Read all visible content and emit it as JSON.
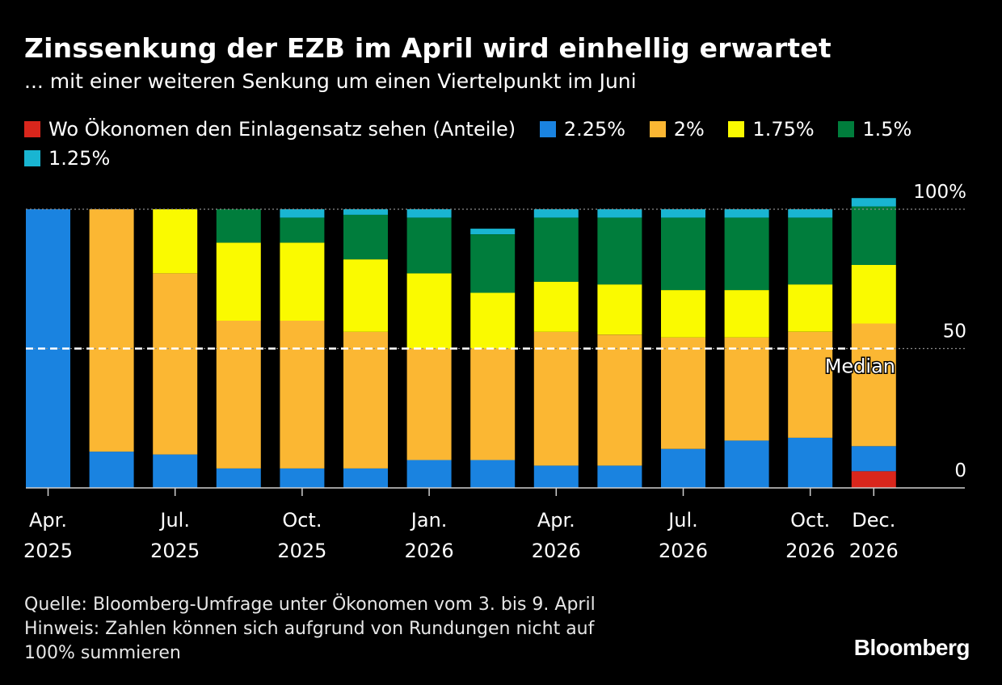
{
  "title": "Zinssenkung der EZB im April wird einhellig erwartet",
  "subtitle": "... mit einer weiteren Senkung um einen Viertelpunkt im Juni",
  "legend": [
    {
      "label": "Wo Ökonomen den Einlagensatz sehen (Anteile)",
      "color": "#d9261c"
    },
    {
      "label": "2.25%",
      "color": "#1a83e0"
    },
    {
      "label": "2%",
      "color": "#fbb733"
    },
    {
      "label": "1.75%",
      "color": "#fafa00"
    },
    {
      "label": "1.5%",
      "color": "#007d3c"
    },
    {
      "label": "1.25%",
      "color": "#19b5d2"
    }
  ],
  "chart_data": {
    "type": "bar",
    "stacked": true,
    "ylim": [
      0,
      100
    ],
    "yticks": [
      "0",
      "50",
      "100%"
    ],
    "xtick_labels": [
      {
        "index": 0,
        "line1": "Apr.",
        "line2": "2025"
      },
      {
        "index": 2,
        "line1": "Jul.",
        "line2": "2025"
      },
      {
        "index": 4,
        "line1": "Oct.",
        "line2": "2025"
      },
      {
        "index": 6,
        "line1": "Jan.",
        "line2": "2026"
      },
      {
        "index": 8,
        "line1": "Apr.",
        "line2": "2026"
      },
      {
        "index": 10,
        "line1": "Jul.",
        "line2": "2026"
      },
      {
        "index": 12,
        "line1": "Oct.",
        "line2": "2026"
      },
      {
        "index": 13,
        "line1": "Dec.",
        "line2": "2026"
      }
    ],
    "series": [
      {
        "name": "Wo Ökonomen den Einlagensatz sehen (Anteile)",
        "color": "#d9261c",
        "values": [
          0,
          0,
          0,
          0,
          0,
          0,
          0,
          0,
          0,
          0,
          0,
          0,
          0,
          6
        ]
      },
      {
        "name": "2.25%",
        "color": "#1a83e0",
        "values": [
          100,
          13,
          12,
          7,
          7,
          7,
          10,
          10,
          8,
          8,
          14,
          17,
          18,
          9
        ]
      },
      {
        "name": "2%",
        "color": "#fbb733",
        "values": [
          0,
          87,
          65,
          53,
          53,
          49,
          40,
          40,
          48,
          47,
          40,
          37,
          38,
          44
        ]
      },
      {
        "name": "1.75%",
        "color": "#fafa00",
        "values": [
          0,
          0,
          23,
          28,
          28,
          26,
          27,
          20,
          18,
          18,
          17,
          17,
          17,
          21
        ]
      },
      {
        "name": "1.5%",
        "color": "#007d3c",
        "values": [
          0,
          0,
          0,
          12,
          9,
          16,
          20,
          21,
          23,
          24,
          26,
          26,
          24,
          21
        ]
      },
      {
        "name": "1.25%",
        "color": "#19b5d2",
        "values": [
          0,
          0,
          0,
          0,
          3,
          2,
          3,
          2,
          3,
          3,
          3,
          3,
          3,
          3
        ]
      }
    ],
    "median": {
      "value": 50,
      "label": "Median"
    }
  },
  "footer": {
    "source": "Quelle: Bloomberg-Umfrage unter Ökonomen vom 3. bis 9. April",
    "note_line1": "Hinweis: Zahlen können sich aufgrund von Rundungen nicht auf",
    "note_line2": "100% summieren"
  },
  "brand": "Bloomberg"
}
